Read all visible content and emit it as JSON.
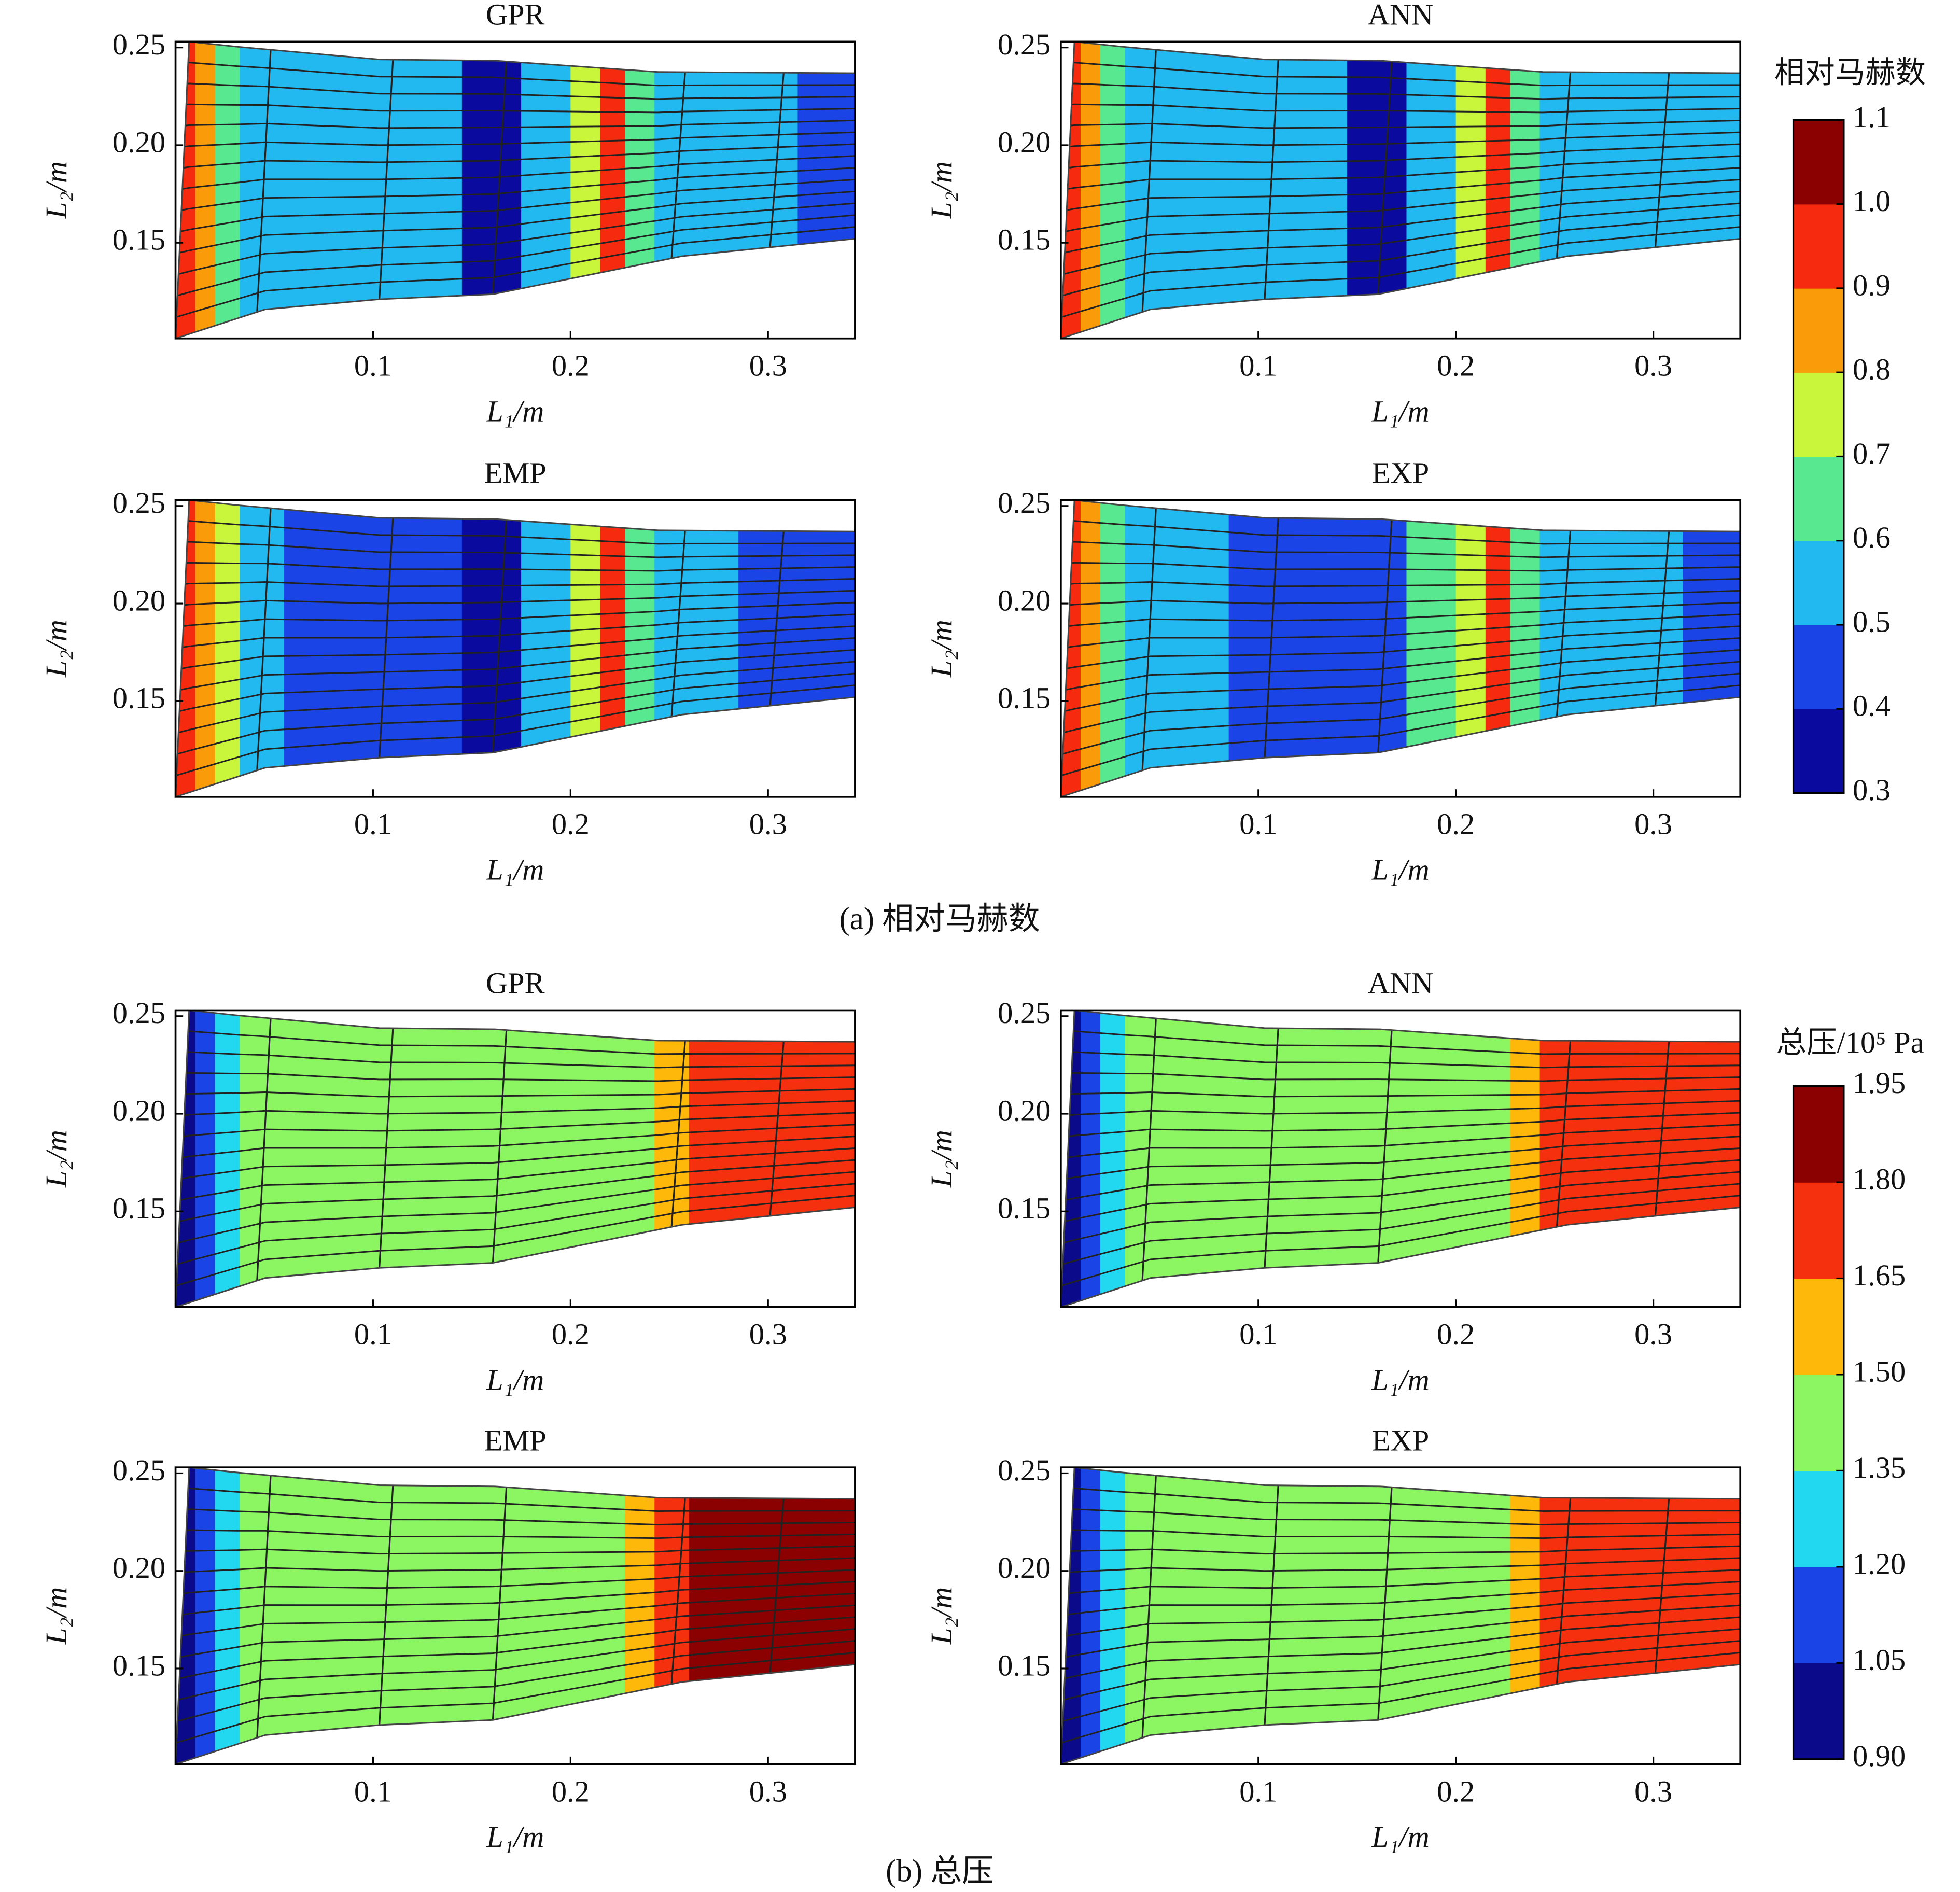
{
  "chart_data": [
    {
      "type": "contour",
      "title": "GPR",
      "x_label": "L₁/m",
      "y_label": "L₂/m",
      "xlim": [
        0,
        0.344
      ],
      "ylim": [
        0.101,
        0.253
      ],
      "xticks": [
        0.1,
        0.2,
        0.3
      ],
      "yticks": [
        0.15,
        {
          "value": 0.2,
          "label": "0.20"
        },
        0.25
      ],
      "x": [
        0.005,
        0.015,
        0.025,
        0.04,
        0.07,
        0.1,
        0.13,
        0.16,
        0.19,
        0.21,
        0.22,
        0.235,
        0.25,
        0.27,
        0.3,
        0.33
      ],
      "values": [
        0.95,
        0.85,
        0.65,
        0.55,
        0.55,
        0.55,
        0.55,
        0.35,
        0.55,
        0.75,
        0.95,
        0.65,
        0.55,
        0.55,
        0.55,
        0.45
      ]
    },
    {
      "type": "contour",
      "title": "ANN",
      "x_label": "L₁/m",
      "y_label": "L₂/m",
      "xlim": [
        0,
        0.344
      ],
      "ylim": [
        0.101,
        0.253
      ],
      "xticks": [
        0.1,
        0.2,
        0.3
      ],
      "yticks": [
        0.15,
        {
          "value": 0.2,
          "label": "0.20"
        },
        0.25
      ],
      "x": [
        0.005,
        0.015,
        0.025,
        0.04,
        0.07,
        0.1,
        0.13,
        0.16,
        0.19,
        0.21,
        0.22,
        0.235,
        0.25,
        0.27,
        0.3,
        0.33
      ],
      "values": [
        0.95,
        0.85,
        0.65,
        0.55,
        0.55,
        0.55,
        0.55,
        0.35,
        0.55,
        0.75,
        0.95,
        0.65,
        0.55,
        0.55,
        0.55,
        0.55
      ]
    },
    {
      "type": "contour",
      "title": "EMP",
      "x_label": "L₁/m",
      "y_label": "L₂/m",
      "xlim": [
        0,
        0.344
      ],
      "ylim": [
        0.101,
        0.253
      ],
      "xticks": [
        0.1,
        0.2,
        0.3
      ],
      "yticks": [
        0.15,
        {
          "value": 0.2,
          "label": "0.20"
        },
        0.25
      ],
      "x": [
        0.005,
        0.015,
        0.025,
        0.04,
        0.07,
        0.1,
        0.13,
        0.16,
        0.19,
        0.21,
        0.22,
        0.235,
        0.25,
        0.27,
        0.3,
        0.33
      ],
      "values": [
        0.95,
        0.85,
        0.75,
        0.55,
        0.45,
        0.45,
        0.45,
        0.35,
        0.55,
        0.75,
        0.95,
        0.65,
        0.55,
        0.55,
        0.45,
        0.45
      ]
    },
    {
      "type": "contour",
      "title": "EXP",
      "x_label": "L₁/m",
      "y_label": "L₂/m",
      "xlim": [
        0,
        0.344
      ],
      "ylim": [
        0.101,
        0.253
      ],
      "xticks": [
        0.1,
        0.2,
        0.3
      ],
      "yticks": [
        0.15,
        {
          "value": 0.2,
          "label": "0.20"
        },
        0.25
      ],
      "x": [
        0.005,
        0.015,
        0.025,
        0.04,
        0.07,
        0.1,
        0.13,
        0.16,
        0.19,
        0.21,
        0.22,
        0.235,
        0.25,
        0.27,
        0.3,
        0.33
      ],
      "values": [
        0.95,
        0.85,
        0.65,
        0.55,
        0.55,
        0.45,
        0.45,
        0.45,
        0.65,
        0.75,
        0.95,
        0.65,
        0.55,
        0.55,
        0.55,
        0.45
      ]
    },
    {
      "type": "contour",
      "title": "GPR",
      "x_label": "L₁/m",
      "y_label": "L₂/m",
      "xlim": [
        0,
        0.344
      ],
      "ylim": [
        0.101,
        0.253
      ],
      "xticks": [
        0.1,
        0.2,
        0.3
      ],
      "yticks": [
        0.15,
        {
          "value": 0.2,
          "label": "0.20"
        },
        0.25
      ],
      "x": [
        0.005,
        0.015,
        0.025,
        0.04,
        0.07,
        0.1,
        0.13,
        0.16,
        0.19,
        0.21,
        0.22,
        0.235,
        0.25,
        0.27,
        0.3,
        0.33
      ],
      "values": [
        0.95,
        1.1,
        1.25,
        1.4,
        1.4,
        1.4,
        1.4,
        1.4,
        1.4,
        1.4,
        1.4,
        1.45,
        1.6,
        1.7,
        1.7,
        1.7
      ]
    },
    {
      "type": "contour",
      "title": "ANN",
      "x_label": "L₁/m",
      "y_label": "L₂/m",
      "xlim": [
        0,
        0.344
      ],
      "ylim": [
        0.101,
        0.253
      ],
      "xticks": [
        0.1,
        0.2,
        0.3
      ],
      "yticks": [
        0.15,
        {
          "value": 0.2,
          "label": "0.20"
        },
        0.25
      ],
      "x": [
        0.005,
        0.015,
        0.025,
        0.04,
        0.07,
        0.1,
        0.13,
        0.16,
        0.19,
        0.21,
        0.22,
        0.235,
        0.25,
        0.27,
        0.3,
        0.33
      ],
      "values": [
        0.95,
        1.1,
        1.25,
        1.4,
        1.4,
        1.4,
        1.4,
        1.4,
        1.4,
        1.4,
        1.4,
        1.6,
        1.7,
        1.7,
        1.7,
        1.7
      ]
    },
    {
      "type": "contour",
      "title": "EMP",
      "x_label": "L₁/m",
      "y_label": "L₂/m",
      "xlim": [
        0,
        0.344
      ],
      "ylim": [
        0.101,
        0.253
      ],
      "xticks": [
        0.1,
        0.2,
        0.3
      ],
      "yticks": [
        0.15,
        {
          "value": 0.2,
          "label": "0.20"
        },
        0.25
      ],
      "x": [
        0.005,
        0.015,
        0.025,
        0.04,
        0.07,
        0.1,
        0.13,
        0.16,
        0.19,
        0.21,
        0.22,
        0.235,
        0.25,
        0.27,
        0.3,
        0.33
      ],
      "values": [
        0.95,
        1.1,
        1.25,
        1.4,
        1.4,
        1.4,
        1.4,
        1.4,
        1.4,
        1.4,
        1.4,
        1.6,
        1.7,
        1.85,
        1.85,
        1.85
      ]
    },
    {
      "type": "contour",
      "title": "EXP",
      "x_label": "L₁/m",
      "y_label": "L₂/m",
      "xlim": [
        0,
        0.344
      ],
      "ylim": [
        0.101,
        0.253
      ],
      "xticks": [
        0.1,
        0.2,
        0.3
      ],
      "yticks": [
        0.15,
        {
          "value": 0.2,
          "label": "0.20"
        },
        0.25
      ],
      "x": [
        0.005,
        0.015,
        0.025,
        0.04,
        0.07,
        0.1,
        0.13,
        0.16,
        0.19,
        0.21,
        0.22,
        0.235,
        0.25,
        0.27,
        0.3,
        0.33
      ],
      "values": [
        0.95,
        1.1,
        1.25,
        1.4,
        1.4,
        1.4,
        1.4,
        1.4,
        1.4,
        1.4,
        1.4,
        1.6,
        1.7,
        1.7,
        1.7,
        1.7
      ]
    }
  ],
  "colorbars": [
    {
      "title": "相对马赫数",
      "ticks": [
        0.3,
        0.4,
        0.5,
        0.6,
        0.7,
        0.8,
        0.9,
        {
          "value": 1,
          "label": "1.0"
        },
        1.1
      ],
      "colors": [
        "#0a0a9e",
        "#1a44e6",
        "#22b8f0",
        "#58e890",
        "#c9f53a",
        "#fa9b0a",
        "#f52a0e",
        "#8b0000"
      ]
    },
    {
      "title": "总压/10⁵ Pa",
      "ticks": [
        {
          "value": 0.9,
          "label": "0.90"
        },
        1.05,
        {
          "value": 1.2,
          "label": "1.20"
        },
        1.35,
        {
          "value": 1.5,
          "label": "1.50"
        },
        1.65,
        {
          "value": 1.8,
          "label": "1.80"
        },
        1.95
      ],
      "colors": [
        "#0a0a8a",
        "#1a44e6",
        "#22d8f0",
        "#8cf562",
        "#fdb80a",
        "#f5300e",
        "#8b0000"
      ]
    }
  ],
  "captions": [
    "(a) 相对马赫数",
    "(b) 总压"
  ]
}
